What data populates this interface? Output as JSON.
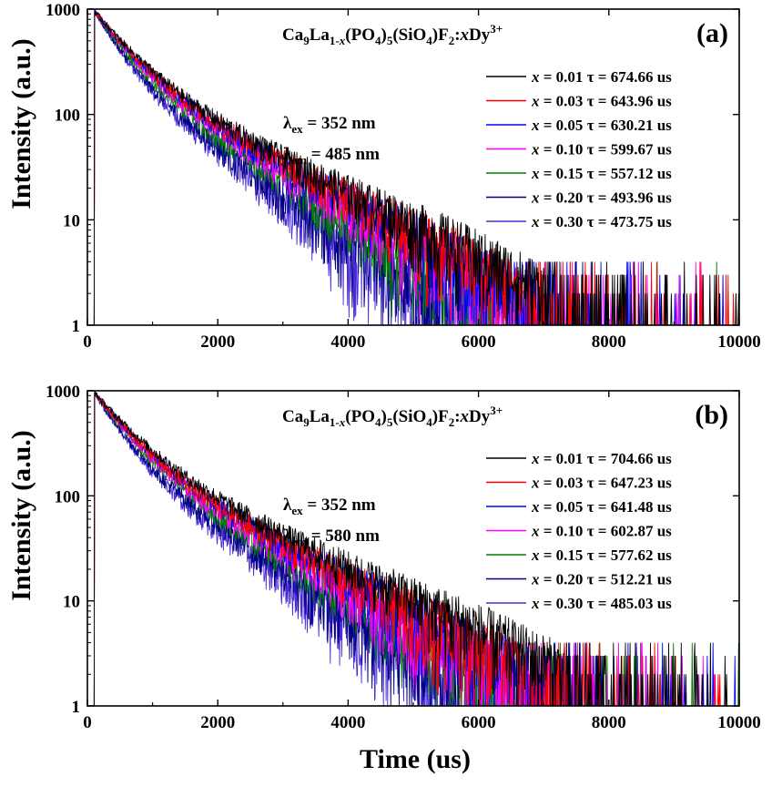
{
  "figure": {
    "ylabel": "Intensity (a.u.)",
    "xlabel": "Time (us)"
  },
  "chart_data": [
    {
      "type": "line",
      "panel_label": "(a)",
      "title_parts": [
        {
          "t": "Ca",
          "s": "n"
        },
        {
          "t": "9",
          "s": "sub"
        },
        {
          "t": "La",
          "s": "n"
        },
        {
          "t": "1-",
          "s": "sub"
        },
        {
          "t": "x",
          "s": "subi"
        },
        {
          "t": "(PO",
          "s": "n"
        },
        {
          "t": "4",
          "s": "sub"
        },
        {
          "t": ")",
          "s": "n"
        },
        {
          "t": "5",
          "s": "sub"
        },
        {
          "t": "(SiO",
          "s": "n"
        },
        {
          "t": "4",
          "s": "sub"
        },
        {
          "t": ")F",
          "s": "n"
        },
        {
          "t": "2",
          "s": "sub"
        },
        {
          "t": ":",
          "s": "n"
        },
        {
          "t": "x",
          "s": "i"
        },
        {
          "t": "Dy",
          "s": "n"
        },
        {
          "t": "3+",
          "s": "sup"
        }
      ],
      "excitation": {
        "symbol": "λ",
        "sub": "ex",
        "text": " = 352 nm"
      },
      "emission": {
        "symbol": "λ",
        "sub": "em",
        "text": " = 485 nm"
      },
      "xlabel": "",
      "ylabel": "Intensity (a.u.)",
      "xlim": [
        0,
        10000
      ],
      "ylim": [
        1,
        1000
      ],
      "yscale": "log",
      "xticks": [
        0,
        2000,
        4000,
        6000,
        8000,
        10000
      ],
      "yticks": [
        1,
        10,
        100,
        1000
      ],
      "legend_position": "top-right",
      "series": [
        {
          "x_label": "x",
          "x_value": "0.01",
          "tau_label": "τ",
          "tau": "674.66 us",
          "tau_num": 674.66,
          "color": "#000000"
        },
        {
          "x_label": "x",
          "x_value": "0.03",
          "tau_label": "τ",
          "tau": "643.96 us",
          "tau_num": 643.96,
          "color": "#ff0000"
        },
        {
          "x_label": "x",
          "x_value": "0.05",
          "tau_label": "τ",
          "tau": "630.21 us",
          "tau_num": 630.21,
          "color": "#0000ff"
        },
        {
          "x_label": "x",
          "x_value": "0.10",
          "tau_label": "τ",
          "tau": "599.67 us",
          "tau_num": 599.67,
          "color": "#ff00ff"
        },
        {
          "x_label": "x",
          "x_value": "0.15",
          "tau_label": "τ",
          "tau": "557.12 us",
          "tau_num": 557.12,
          "color": "#008000"
        },
        {
          "x_label": "x",
          "x_value": "0.20",
          "tau_label": "τ",
          "tau": "493.96 us",
          "tau_num": 493.96,
          "color": "#000080"
        },
        {
          "x_label": "x",
          "x_value": "0.30",
          "tau_label": "τ",
          "tau": "473.75 us",
          "tau_num": 473.75,
          "color": "#4b2bd8"
        }
      ]
    },
    {
      "type": "line",
      "panel_label": "(b)",
      "title_parts": [
        {
          "t": "Ca",
          "s": "n"
        },
        {
          "t": "9",
          "s": "sub"
        },
        {
          "t": "La",
          "s": "n"
        },
        {
          "t": "1-",
          "s": "sub"
        },
        {
          "t": "x",
          "s": "subi"
        },
        {
          "t": "(PO",
          "s": "n"
        },
        {
          "t": "4",
          "s": "sub"
        },
        {
          "t": ")",
          "s": "n"
        },
        {
          "t": "5",
          "s": "sub"
        },
        {
          "t": "(SiO",
          "s": "n"
        },
        {
          "t": "4",
          "s": "sub"
        },
        {
          "t": ")F",
          "s": "n"
        },
        {
          "t": "2",
          "s": "sub"
        },
        {
          "t": ":",
          "s": "n"
        },
        {
          "t": "x",
          "s": "i"
        },
        {
          "t": "Dy",
          "s": "n"
        },
        {
          "t": "3+",
          "s": "sup"
        }
      ],
      "excitation": {
        "symbol": "λ",
        "sub": "ex",
        "text": " = 352 nm"
      },
      "emission": {
        "symbol": "λ",
        "sub": "em",
        "text": " = 580 nm"
      },
      "xlabel": "Time (us)",
      "ylabel": "Intensity (a.u.)",
      "xlim": [
        0,
        10000
      ],
      "ylim": [
        1,
        1000
      ],
      "yscale": "log",
      "xticks": [
        0,
        2000,
        4000,
        6000,
        8000,
        10000
      ],
      "yticks": [
        1,
        10,
        100,
        1000
      ],
      "legend_position": "top-right",
      "series": [
        {
          "x_label": "x",
          "x_value": "0.01",
          "tau_label": "τ",
          "tau": "704.66 us",
          "tau_num": 704.66,
          "color": "#000000"
        },
        {
          "x_label": "x",
          "x_value": "0.03",
          "tau_label": "τ",
          "tau": "647.23 us",
          "tau_num": 647.23,
          "color": "#ff0000"
        },
        {
          "x_label": "x",
          "x_value": "0.05",
          "tau_label": "τ",
          "tau": "641.48 us",
          "tau_num": 641.48,
          "color": "#0000ff"
        },
        {
          "x_label": "x",
          "x_value": "0.10",
          "tau_label": "τ",
          "tau": "602.87 us",
          "tau_num": 602.87,
          "color": "#ff00ff"
        },
        {
          "x_label": "x",
          "x_value": "0.15",
          "tau_label": "τ",
          "tau": "577.62 us",
          "tau_num": 577.62,
          "color": "#008000"
        },
        {
          "x_label": "x",
          "x_value": "0.20",
          "tau_label": "τ",
          "tau": "512.21 us",
          "tau_num": 512.21,
          "color": "#000080"
        },
        {
          "x_label": "x",
          "x_value": "0.30",
          "tau_label": "τ",
          "tau": "485.03 us",
          "tau_num": 485.03,
          "color": "#4b2bd8"
        }
      ]
    }
  ]
}
